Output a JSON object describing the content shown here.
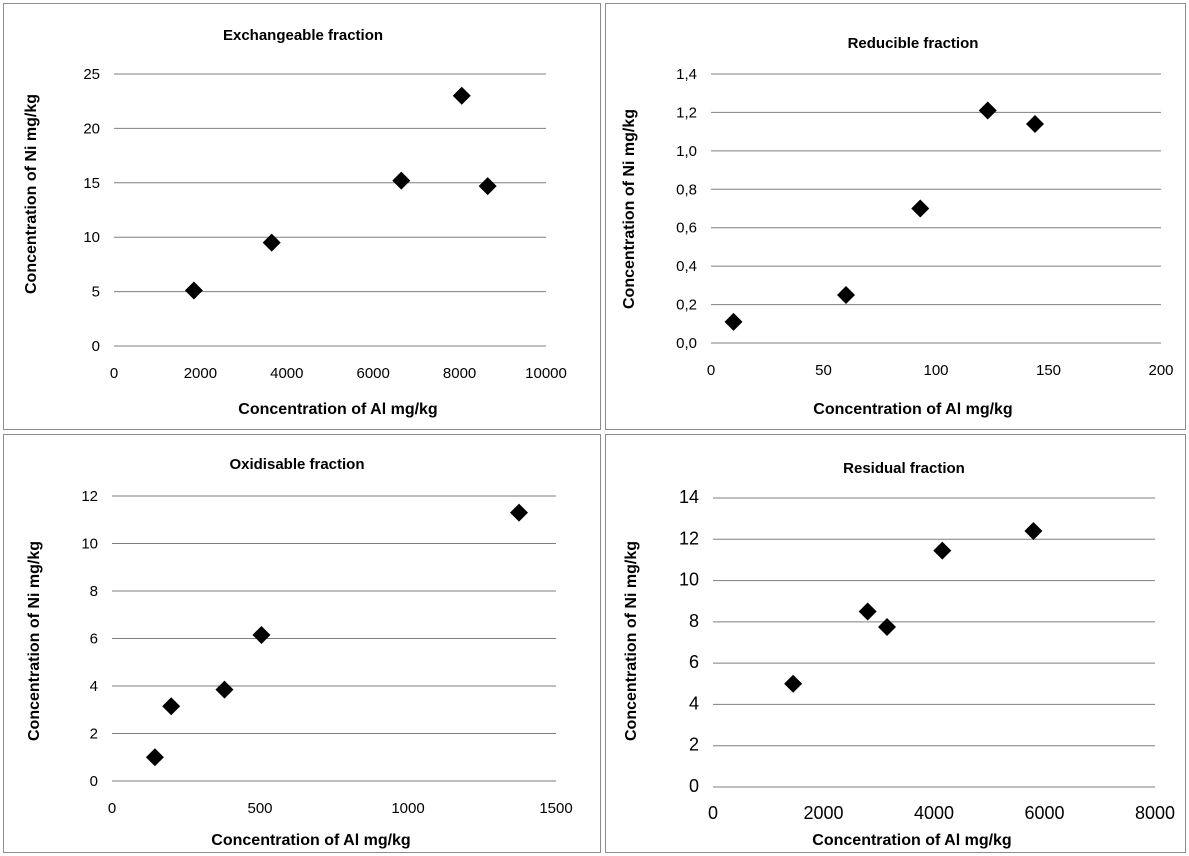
{
  "chart_data": [
    {
      "type": "scatter",
      "title": "Exchangeable fraction",
      "xlabel": "Concentration of Al mg/kg",
      "ylabel": "Concentration of Ni mg/kg",
      "xlim": [
        0,
        10000
      ],
      "ylim": [
        0,
        25
      ],
      "xticks": [
        0,
        2000,
        4000,
        6000,
        8000,
        10000
      ],
      "yticks": [
        0,
        5,
        10,
        15,
        20,
        25
      ],
      "ytick_labels": [
        "0",
        "5",
        "10",
        "15",
        "20",
        "25"
      ],
      "xtick_labels": [
        "0",
        "2000",
        "4000",
        "6000",
        "8000",
        "10000"
      ],
      "grid": true,
      "marker_color": "#000000",
      "x": [
        1850,
        3650,
        6650,
        8050,
        8650
      ],
      "y": [
        5.1,
        9.5,
        15.2,
        23.0,
        14.7
      ]
    },
    {
      "type": "scatter",
      "title": "Reducible fraction",
      "xlabel": "Concentration of Al mg/kg",
      "ylabel": "Concentration of Ni mg/kg",
      "xlim": [
        0,
        200
      ],
      "ylim": [
        0,
        1.4
      ],
      "xticks": [
        0,
        50,
        100,
        150,
        200
      ],
      "yticks": [
        0,
        0.2,
        0.4,
        0.6,
        0.8,
        1.0,
        1.2,
        1.4
      ],
      "ytick_labels": [
        "0,0",
        "0,2",
        "0,4",
        "0,6",
        "0,8",
        "1,0",
        "1,2",
        "1,4"
      ],
      "xtick_labels": [
        "0",
        "50",
        "100",
        "150",
        "200"
      ],
      "grid": true,
      "marker_color": "#000000",
      "x": [
        10,
        60,
        93,
        123,
        144
      ],
      "y": [
        0.11,
        0.25,
        0.7,
        1.21,
        1.14
      ]
    },
    {
      "type": "scatter",
      "title": "Oxidisable fraction",
      "xlabel": "Concentration of Al mg/kg",
      "ylabel": "Concentration of Ni mg/kg",
      "xlim": [
        0,
        1500
      ],
      "ylim": [
        0,
        12
      ],
      "xticks": [
        0,
        500,
        1000,
        1500
      ],
      "yticks": [
        0,
        2,
        4,
        6,
        8,
        10,
        12
      ],
      "ytick_labels": [
        "0",
        "2",
        "4",
        "6",
        "8",
        "10",
        "12"
      ],
      "xtick_labels": [
        "0",
        "500",
        "1000",
        "1500"
      ],
      "grid": true,
      "marker_color": "#000000",
      "x": [
        145,
        200,
        380,
        505,
        1375
      ],
      "y": [
        1.0,
        3.15,
        3.85,
        6.15,
        11.3
      ]
    },
    {
      "type": "scatter",
      "title": "Residual fraction",
      "xlabel": "Concentration of Al mg/kg",
      "ylabel": "Concentration of Ni mg/kg",
      "xlim": [
        0,
        8000
      ],
      "ylim": [
        0,
        14
      ],
      "xticks": [
        0,
        2000,
        4000,
        6000,
        8000
      ],
      "yticks": [
        0,
        2,
        4,
        6,
        8,
        10,
        12,
        14
      ],
      "ytick_labels": [
        "0",
        "2",
        "4",
        "6",
        "8",
        "10",
        "12",
        "14"
      ],
      "xtick_labels": [
        "0",
        "2000",
        "4000",
        "6000",
        "8000"
      ],
      "grid": true,
      "marker_color": "#000000",
      "x": [
        1450,
        2800,
        3150,
        4150,
        5800
      ],
      "y": [
        5.0,
        8.5,
        7.75,
        11.45,
        12.4
      ]
    }
  ]
}
